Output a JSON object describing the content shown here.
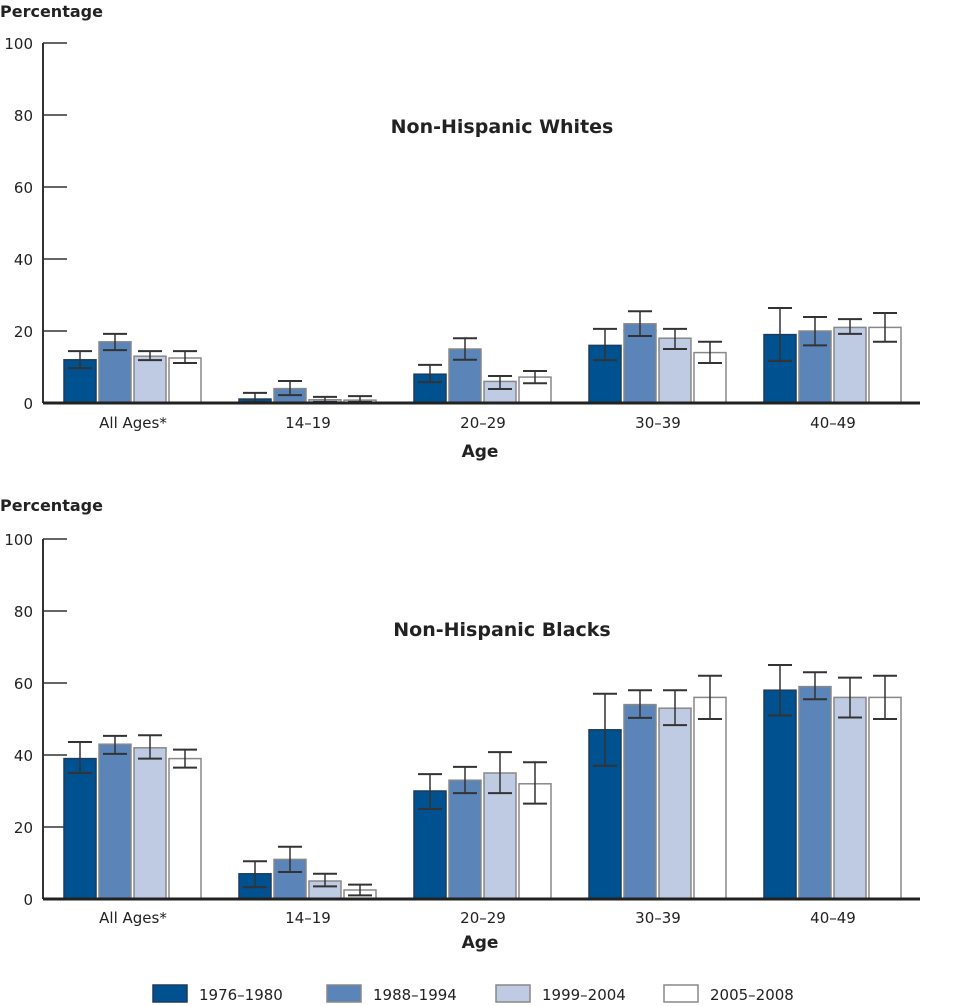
{
  "chart_data": [
    {
      "type": "bar",
      "title": "Non-Hispanic Whites",
      "ylabel": "Percentage",
      "xlabel": "Age",
      "ylim": [
        0,
        100
      ],
      "yticks": [
        "0",
        "20",
        "40",
        "60",
        "80",
        "100"
      ],
      "categories": [
        "All Ages*",
        "14–19",
        "20–29",
        "30–39",
        "40–49"
      ],
      "series": [
        {
          "name": "1976–1980",
          "values": [
            12,
            1.1,
            8,
            16,
            19
          ],
          "err_low": [
            9.7,
            0.3,
            5.8,
            11.9,
            11.7
          ],
          "err_high": [
            14.4,
            2.8,
            10.6,
            20.6,
            26.4
          ]
        },
        {
          "name": "1988–1994",
          "values": [
            17,
            4,
            15,
            22,
            20
          ],
          "err_low": [
            14.7,
            2.2,
            12,
            18.6,
            16
          ],
          "err_high": [
            19.2,
            6.1,
            18,
            25.5,
            23.9
          ]
        },
        {
          "name": "1999–2004",
          "values": [
            13,
            0.9,
            6,
            18,
            21
          ],
          "err_low": [
            11.9,
            0.3,
            3.9,
            15,
            19.2
          ],
          "err_high": [
            14.4,
            1.7,
            7.5,
            20.6,
            23.3
          ]
        },
        {
          "name": "2005–2008",
          "values": [
            12.5,
            0.8,
            7.2,
            14,
            21
          ],
          "err_low": [
            11.1,
            0.3,
            5.5,
            11.1,
            17
          ],
          "err_high": [
            14.4,
            1.9,
            8.9,
            17,
            25
          ]
        }
      ]
    },
    {
      "type": "bar",
      "title": "Non-Hispanic Blacks",
      "ylabel": "Percentage",
      "xlabel": "Age",
      "ylim": [
        0,
        100
      ],
      "yticks": [
        "0",
        "20",
        "40",
        "60",
        "80",
        "100"
      ],
      "categories": [
        "All Ages*",
        "14–19",
        "20–29",
        "30–39",
        "40–49"
      ],
      "series": [
        {
          "name": "1976–1980",
          "values": [
            39,
            7,
            30,
            47,
            58
          ],
          "err_low": [
            35,
            3.3,
            25,
            37,
            51
          ],
          "err_high": [
            43.6,
            10.5,
            34.7,
            57,
            65
          ]
        },
        {
          "name": "1988–1994",
          "values": [
            43,
            11,
            33,
            54,
            59
          ],
          "err_low": [
            40.3,
            7.5,
            29.4,
            50.3,
            55.5
          ],
          "err_high": [
            45.3,
            14.5,
            36.7,
            58,
            63
          ]
        },
        {
          "name": "1999–2004",
          "values": [
            42,
            5,
            35,
            53,
            56
          ],
          "err_low": [
            39,
            3.5,
            29.4,
            48.3,
            50.4
          ],
          "err_high": [
            45.5,
            7,
            40.8,
            58,
            61.5
          ]
        },
        {
          "name": "2005–2008",
          "values": [
            39,
            2.5,
            32,
            56,
            56
          ],
          "err_low": [
            36.5,
            1,
            26.5,
            50,
            50
          ],
          "err_high": [
            41.5,
            4,
            38,
            62,
            62
          ]
        }
      ]
    }
  ],
  "legend": {
    "items": [
      "1976–1980",
      "1988–1994",
      "1999–2004",
      "2005–2008"
    ],
    "colors": [
      "#00518f",
      "#5b84b8",
      "#bfcbe3",
      "#ffffff"
    ]
  }
}
